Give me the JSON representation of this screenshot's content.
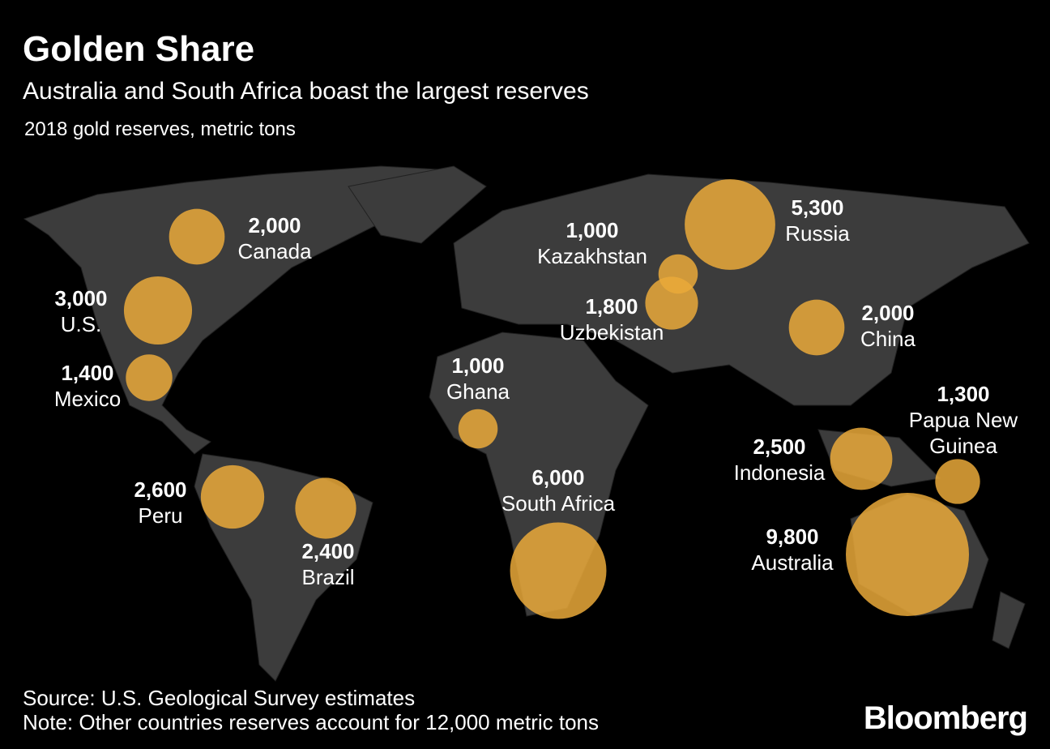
{
  "title": "Golden Share",
  "subtitle": "Australia and South Africa boast the largest reserves",
  "unit_label": "2018 gold reserves, metric tons",
  "countries": [
    {
      "name": "Canada",
      "value": 2000,
      "value_label": "2,000"
    },
    {
      "name": "U.S.",
      "value": 3000,
      "value_label": "3,000"
    },
    {
      "name": "Mexico",
      "value": 1400,
      "value_label": "1,400"
    },
    {
      "name": "Peru",
      "value": 2600,
      "value_label": "2,600"
    },
    {
      "name": "Brazil",
      "value": 2400,
      "value_label": "2,400"
    },
    {
      "name": "Ghana",
      "value": 1000,
      "value_label": "1,000"
    },
    {
      "name": "South Africa",
      "value": 6000,
      "value_label": "6,000"
    },
    {
      "name": "Kazakhstan",
      "value": 1000,
      "value_label": "1,000"
    },
    {
      "name": "Uzbekistan",
      "value": 1800,
      "value_label": "1,800"
    },
    {
      "name": "Russia",
      "value": 5300,
      "value_label": "5,300"
    },
    {
      "name": "China",
      "value": 2000,
      "value_label": "2,000"
    },
    {
      "name": "Indonesia",
      "value": 2500,
      "value_label": "2,500"
    },
    {
      "name": "Papua New Guinea",
      "value": 1300,
      "value_label": "1,300"
    },
    {
      "name": "Australia",
      "value": 9800,
      "value_label": "9,800"
    }
  ],
  "source": "Source: U.S. Geological Survey estimates",
  "note": "Note: Other countries reserves account for 12,000 metric tons",
  "brand": "Bloomberg"
}
